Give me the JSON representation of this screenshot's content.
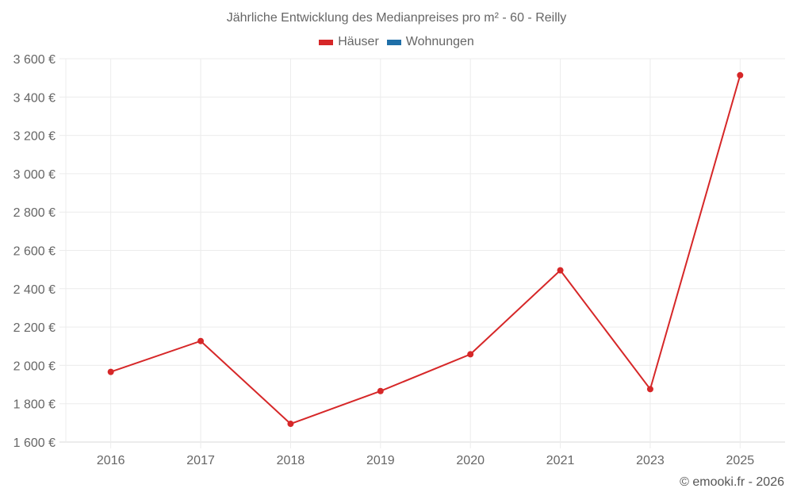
{
  "chart_data": {
    "type": "line",
    "title": "Jährliche Entwicklung des Medianpreises pro m² - 60 - Reilly",
    "xlabel": "",
    "ylabel": "",
    "categories": [
      "2016",
      "2017",
      "2018",
      "2019",
      "2020",
      "2021",
      "2023",
      "2025"
    ],
    "series": [
      {
        "name": "Häuser",
        "color": "#d62728",
        "values": [
          1966,
          2127,
          1695,
          1866,
          2058,
          2496,
          1876,
          3514
        ]
      },
      {
        "name": "Wohnungen",
        "color": "#1f6fa8",
        "values": []
      }
    ],
    "ylim": [
      1600,
      3600
    ],
    "yticks": [
      1600,
      1800,
      2000,
      2200,
      2400,
      2600,
      2800,
      3000,
      3200,
      3400,
      3600
    ],
    "ytick_labels": [
      "1 600 €",
      "1 800 €",
      "2 000 €",
      "2 200 €",
      "2 400 €",
      "2 600 €",
      "2 800 €",
      "3 000 €",
      "3 200 €",
      "3 400 €",
      "3 600 €"
    ],
    "grid": true,
    "legend_position": "top"
  },
  "legend": [
    {
      "label": "Häuser",
      "color": "#d62728"
    },
    {
      "label": "Wohnungen",
      "color": "#1f6fa8"
    }
  ],
  "credit": "© emooki.fr - 2026"
}
